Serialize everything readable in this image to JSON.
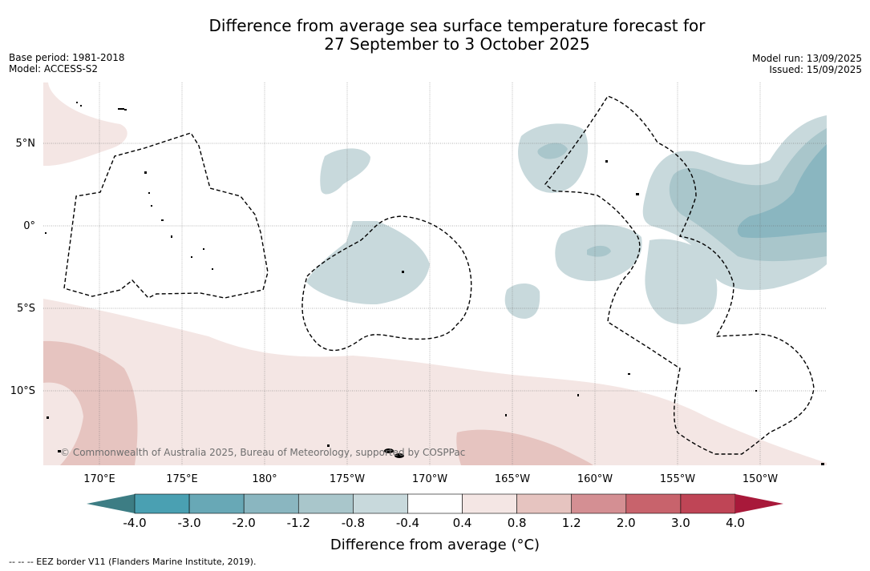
{
  "title": {
    "line1": "Difference from average sea surface temperature forecast for",
    "line2": "27 September to 3 October 2025"
  },
  "meta_left": {
    "base_period": "Base period: 1981-2018",
    "model": "Model: ACCESS-S2"
  },
  "meta_right": {
    "model_run": "Model run: 13/09/2025",
    "issued": "Issued: 15/09/2025"
  },
  "map": {
    "lat_labels": [
      "5°N",
      "0°",
      "5°S",
      "10°S"
    ],
    "lon_labels": [
      "170°E",
      "175°E",
      "180°",
      "175°W",
      "170°W",
      "165°W",
      "160°W",
      "155°W",
      "150°W"
    ],
    "copyright": "© Commonwealth of Australia 2025, Bureau of Meteorology, supported by COSPPac"
  },
  "colorbar": {
    "title": "Difference from average (°C)",
    "ticks": [
      "-4.0",
      "-3.0",
      "-2.0",
      "-1.2",
      "-0.8",
      "-0.4",
      "0.4",
      "0.8",
      "1.2",
      "2.0",
      "3.0",
      "4.0"
    ],
    "colors": [
      "#4aa0b2",
      "#68a8b6",
      "#8ab6c0",
      "#a9c6cb",
      "#c8d9dc",
      "#ffffff",
      "#f4e6e4",
      "#e6c4c0",
      "#d48f93",
      "#c8636c",
      "#bf4556"
    ],
    "under_color": "#3d7d84",
    "over_color": "#a8193a"
  },
  "footnote": "--  --  -- EEZ border V11 (Flanders Marine Institute, 2019)."
}
